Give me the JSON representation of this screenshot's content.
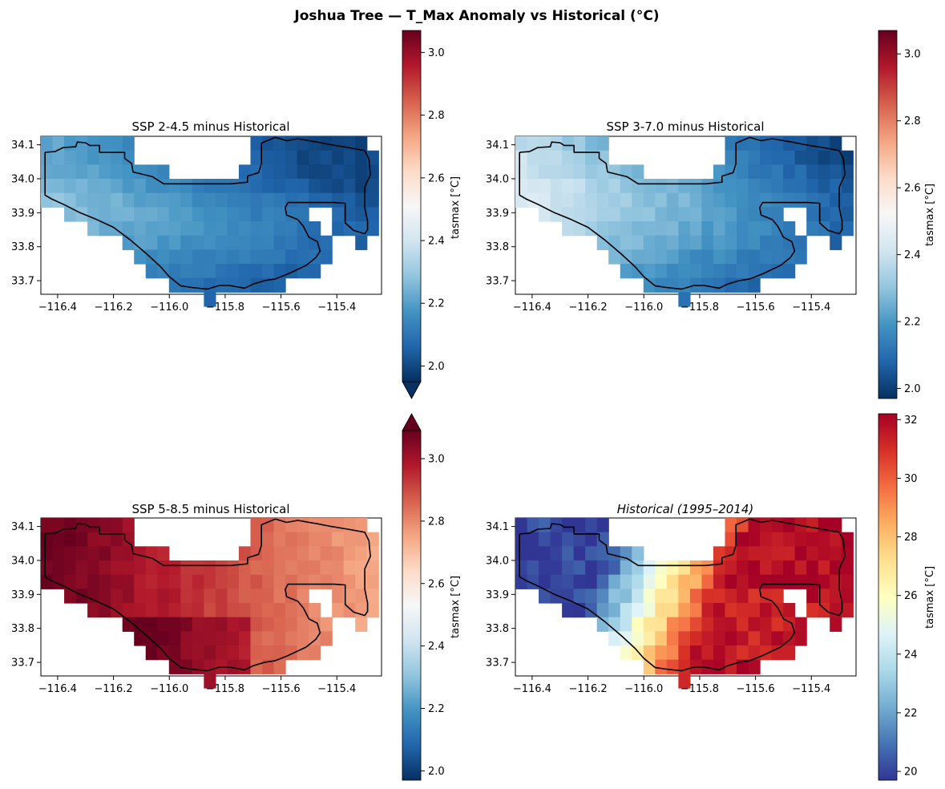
{
  "suptitle": "Joshua Tree — T_Max Anomaly vs Historical (°C)",
  "chart_data": [
    {
      "type": "heatmap",
      "title": "SSP 2-4.5 minus Historical",
      "italic": false,
      "colormap": "RdBu_r",
      "value_range": [
        1.95,
        3.07
      ],
      "value_summary": "field ≈ 1.98–2.35 °C; warmest in west/central interior, coolest (≈2.0) along southern edge and northeast",
      "x_ticks": [
        -116.4,
        -116.2,
        -116.0,
        -115.8,
        -115.6,
        -115.4
      ],
      "x_tick_labels": [
        "−116.4",
        "−116.2",
        "−116.0",
        "−115.8",
        "−115.6",
        "−115.4"
      ],
      "y_ticks": [
        34.1,
        34.0,
        33.9,
        33.8,
        33.7
      ],
      "y_tick_labels": [
        "34.1",
        "34.0",
        "33.9",
        "33.8",
        "33.7"
      ],
      "xlim": [
        -116.46,
        -115.24
      ],
      "ylim": [
        33.66,
        34.125
      ],
      "colorbar": {
        "label": "tasmax [°C]",
        "ticks": [
          2.0,
          2.2,
          2.4,
          2.6,
          2.8,
          3.0
        ],
        "tick_labels": [
          "2.0",
          "2.2",
          "2.4",
          "2.6",
          "2.8",
          "3.0"
        ],
        "extend": "min",
        "shared_with_next_row": false
      }
    },
    {
      "type": "heatmap",
      "title": "SSP 3-7.0 minus Historical",
      "italic": false,
      "colormap": "RdBu_r",
      "value_range": [
        1.97,
        3.07
      ],
      "value_summary": "field ≈ 2.0–2.45 °C; lighter (≈2.35–2.45) in western/central interior, deeper blue (≈2.05) in east",
      "x_ticks": [
        -116.4,
        -116.2,
        -116.0,
        -115.8,
        -115.6,
        -115.4
      ],
      "x_tick_labels": [
        "−116.4",
        "−116.2",
        "−116.0",
        "−115.8",
        "−115.6",
        "−115.4"
      ],
      "y_ticks": [
        34.1,
        34.0,
        33.9,
        33.8,
        33.7
      ],
      "y_tick_labels": [
        "34.1",
        "34.0",
        "33.9",
        "33.8",
        "33.7"
      ],
      "xlim": [
        -116.46,
        -115.24
      ],
      "ylim": [
        33.66,
        34.125
      ],
      "colorbar": {
        "label": "tasmax [°C]",
        "ticks": [
          2.0,
          2.2,
          2.4,
          2.6,
          2.8,
          3.0
        ],
        "tick_labels": [
          "2.0",
          "2.2",
          "2.4",
          "2.6",
          "2.8",
          "3.0"
        ],
        "extend": "neither"
      }
    },
    {
      "type": "heatmap",
      "title": "SSP 5-8.5 minus Historical",
      "italic": false,
      "colormap": "RdBu_r",
      "value_range": [
        1.97,
        3.09
      ],
      "value_summary": "field ≈ 2.65–3.1 °C; darkest red (≈3.05) in northwest and south-central, lighter (≈2.7) in east",
      "x_ticks": [
        -116.4,
        -116.2,
        -116.0,
        -115.8,
        -115.6,
        -115.4
      ],
      "x_tick_labels": [
        "−116.4",
        "−116.2",
        "−116.0",
        "−115.8",
        "−115.6",
        "−115.4"
      ],
      "y_ticks": [
        34.1,
        34.0,
        33.9,
        33.8,
        33.7
      ],
      "y_tick_labels": [
        "34.1",
        "34.0",
        "33.9",
        "33.8",
        "33.7"
      ],
      "xlim": [
        -116.46,
        -115.24
      ],
      "ylim": [
        33.66,
        34.125
      ],
      "colorbar": {
        "label": "tasmax [°C]",
        "ticks": [
          2.0,
          2.2,
          2.4,
          2.6,
          2.8,
          3.0
        ],
        "tick_labels": [
          "2.0",
          "2.2",
          "2.4",
          "2.6",
          "2.8",
          "3.0"
        ],
        "extend": "max"
      }
    },
    {
      "type": "heatmap",
      "title": "Historical (1995–2014)",
      "italic": true,
      "colormap": "RdYlBu_r",
      "value_range": [
        19.7,
        32.2
      ],
      "value_summary": "field ≈ 20–31.5 °C; coolest (≈20–22) in western highlands, warmest (≈30–31) along eastern lowlands",
      "x_ticks": [
        -116.4,
        -116.2,
        -116.0,
        -115.8,
        -115.6,
        -115.4
      ],
      "x_tick_labels": [
        "−116.4",
        "−116.2",
        "−116.0",
        "−115.8",
        "−115.6",
        "−115.4"
      ],
      "y_ticks": [
        34.1,
        34.0,
        33.9,
        33.8,
        33.7
      ],
      "y_tick_labels": [
        "34.1",
        "34.0",
        "33.9",
        "33.8",
        "33.7"
      ],
      "xlim": [
        -116.46,
        -115.24
      ],
      "ylim": [
        33.66,
        34.125
      ],
      "colorbar": {
        "label": "tasmax [°C]",
        "ticks": [
          20,
          22,
          24,
          26,
          28,
          30,
          32
        ],
        "tick_labels": [
          "20",
          "22",
          "24",
          "26",
          "28",
          "30",
          "32"
        ],
        "extend": "neither"
      }
    }
  ]
}
